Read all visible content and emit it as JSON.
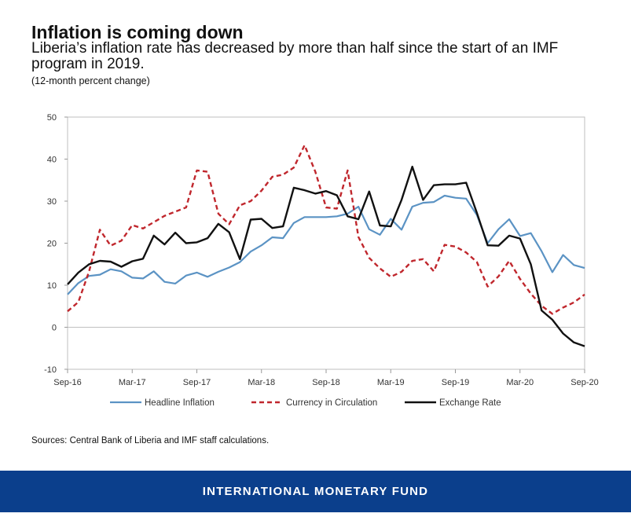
{
  "header": {
    "title": "Inflation is coming down",
    "subtitle": "Liberia’s inflation rate has decreased by more than half since the start of an IMF program in 2019.",
    "note": "(12-month percent change)"
  },
  "source_text": "Sources: Central Bank of Liberia and IMF staff calculations.",
  "footer_text": "INTERNATIONAL MONETARY FUND",
  "colors": {
    "headline": "#5b93c4",
    "currency": "#c0272d",
    "exchange": "#111111",
    "footer_bg": "#0b3f8c"
  },
  "chart_data": {
    "type": "line",
    "x": [
      "Sep-16",
      "Oct-16",
      "Nov-16",
      "Dec-16",
      "Jan-17",
      "Feb-17",
      "Mar-17",
      "Apr-17",
      "May-17",
      "Jun-17",
      "Jul-17",
      "Aug-17",
      "Sep-17",
      "Oct-17",
      "Nov-17",
      "Dec-17",
      "Jan-18",
      "Feb-18",
      "Mar-18",
      "Apr-18",
      "May-18",
      "Jun-18",
      "Jul-18",
      "Aug-18",
      "Sep-18",
      "Oct-18",
      "Nov-18",
      "Dec-18",
      "Jan-19",
      "Feb-19",
      "Mar-19",
      "Apr-19",
      "May-19",
      "Jun-19",
      "Jul-19",
      "Aug-19",
      "Sep-19",
      "Oct-19",
      "Nov-19",
      "Dec-19",
      "Jan-20",
      "Feb-20",
      "Mar-20",
      "Apr-20",
      "May-20",
      "Jun-20",
      "Jul-20",
      "Aug-20",
      "Sep-20"
    ],
    "x_tick_labels": [
      "Sep-16",
      "Mar-17",
      "Sep-17",
      "Mar-18",
      "Sep-18",
      "Mar-19",
      "Sep-19",
      "Mar-20",
      "Sep-20"
    ],
    "ylim": [
      -10,
      50
    ],
    "y_ticks": [
      -10,
      0,
      10,
      20,
      30,
      40,
      50
    ],
    "legend_position": "bottom",
    "series": [
      {
        "name": "Headline Inflation",
        "style": "solid",
        "values": [
          7.8,
          10.5,
          12.2,
          12.5,
          13.8,
          13.3,
          11.8,
          11.6,
          13.3,
          10.8,
          10.4,
          12.3,
          13.0,
          12.0,
          13.2,
          14.2,
          15.5,
          18.0,
          19.5,
          21.4,
          21.2,
          24.8,
          26.2,
          26.2,
          26.2,
          26.4,
          27.0,
          28.7,
          23.3,
          22.0,
          25.8,
          23.2,
          28.7,
          29.6,
          29.8,
          31.3,
          30.8,
          30.6,
          26.7,
          20.0,
          23.3,
          25.7,
          21.7,
          22.4,
          18.1,
          13.1,
          17.2,
          14.8,
          14.1
        ]
      },
      {
        "name": "Currency in Circulation",
        "style": "dashed",
        "values": [
          3.8,
          6.0,
          13.3,
          23.2,
          19.4,
          20.6,
          24.3,
          23.5,
          25.0,
          26.5,
          27.5,
          28.5,
          37.3,
          37.0,
          27.0,
          24.5,
          29.0,
          30.0,
          32.5,
          35.8,
          36.3,
          38.0,
          43.3,
          37.0,
          28.5,
          28.2,
          37.3,
          21.5,
          16.5,
          14.0,
          12.0,
          13.2,
          15.8,
          16.2,
          13.3,
          19.6,
          19.2,
          17.8,
          15.5,
          9.7,
          12.1,
          15.8,
          11.5,
          8.0,
          5.1,
          3.2,
          4.7,
          5.9,
          7.8
        ]
      },
      {
        "name": "Exchange Rate",
        "style": "solid",
        "values": [
          10.2,
          13.0,
          15.0,
          15.8,
          15.6,
          14.4,
          15.7,
          16.3,
          21.8,
          19.7,
          22.5,
          20.0,
          20.2,
          21.2,
          24.6,
          22.6,
          16.2,
          25.6,
          25.8,
          23.6,
          24.0,
          33.2,
          32.6,
          31.8,
          32.4,
          31.4,
          26.4,
          25.7,
          32.3,
          24.2,
          24.0,
          30.3,
          38.2,
          30.3,
          33.8,
          34.0,
          34.0,
          34.4,
          27.2,
          19.5,
          19.4,
          21.8,
          21.1,
          15.0,
          4.0,
          1.8,
          -1.5,
          -3.6,
          -4.5
        ]
      }
    ]
  }
}
